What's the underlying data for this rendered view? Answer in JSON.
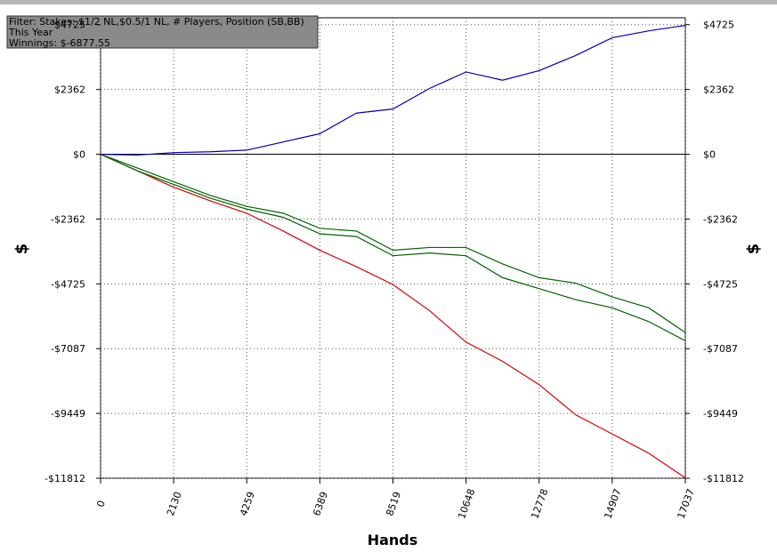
{
  "chart_data": {
    "type": "line",
    "filter": [
      "Filter: Stakes: $1/2 NL,$0.5/1 NL, # Players, Position (SB,BB)",
      "This Year",
      "Winnings: $-6877.55"
    ],
    "xlabel": "Hands",
    "ylabel": "$",
    "x": [
      0,
      1065,
      2130,
      3195,
      4259,
      5324,
      6389,
      7454,
      8519,
      9584,
      10648,
      11713,
      12778,
      13843,
      14907,
      15972,
      17037
    ],
    "series": [
      {
        "color": "#0000b0",
        "values": [
          0,
          -30,
          60,
          90,
          150,
          450,
          750,
          1500,
          1650,
          2400,
          3000,
          2700,
          3050,
          3600,
          4250,
          4500,
          4700
        ]
      },
      {
        "color": "#d80000",
        "values": [
          0,
          -600,
          -1200,
          -1700,
          -2150,
          -2800,
          -3500,
          -4100,
          -4750,
          -5700,
          -6850,
          -7550,
          -8400,
          -9500,
          -10200,
          -10900,
          -11800
        ]
      },
      {
        "color": "#006400",
        "values": [
          0,
          -500,
          -1000,
          -1500,
          -1900,
          -2150,
          -2700,
          -2800,
          -3500,
          -3400,
          -3400,
          -4000,
          -4500,
          -4700,
          -5200,
          -5600,
          -6500
        ]
      },
      {
        "color": "#006400",
        "values": [
          0,
          -600,
          -1100,
          -1600,
          -2000,
          -2300,
          -2900,
          -3000,
          -3700,
          -3600,
          -3700,
          -4500,
          -4900,
          -5300,
          -5600,
          -6100,
          -6800
        ]
      }
    ],
    "xlim": [
      0,
      17037
    ],
    "xticks": [
      0,
      2130,
      4259,
      6389,
      8519,
      10648,
      12778,
      14907,
      17037
    ],
    "ylim": [
      -11812,
      4976
    ],
    "yticks": [
      {
        "value": 4725,
        "label": "$4725"
      },
      {
        "value": 2362,
        "label": "$2362"
      },
      {
        "value": 0,
        "label": "$0"
      },
      {
        "value": -2362,
        "label": "-$2362"
      },
      {
        "value": -4725,
        "label": "-$4725"
      },
      {
        "value": -7087,
        "label": "-$7087"
      },
      {
        "value": -9449,
        "label": "-$9449"
      },
      {
        "value": -11812,
        "label": "-$11812"
      }
    ],
    "grid": true
  }
}
